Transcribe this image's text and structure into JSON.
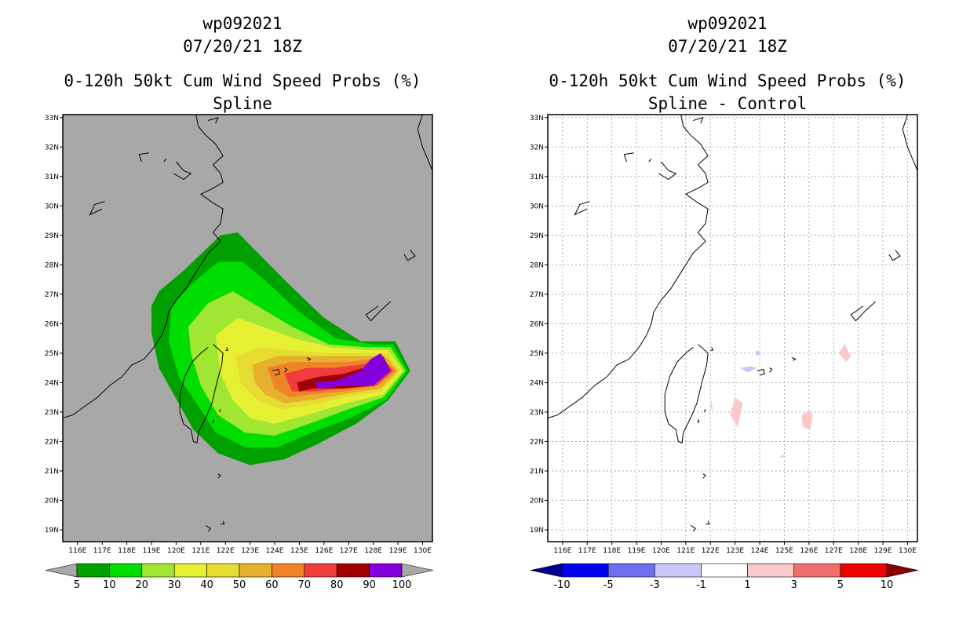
{
  "left_panel": {
    "title_storm": "wp092021",
    "title_time": "07/20/21 18Z",
    "title_product": "0-120h 50kt Cum Wind Speed Probs (%)",
    "title_model": "Spline",
    "colorbar": {
      "labels": [
        "5",
        "10",
        "20",
        "30",
        "40",
        "50",
        "60",
        "70",
        "80",
        "90",
        "100"
      ],
      "colors": [
        "#a8a8a8",
        "#00a000",
        "#00dd00",
        "#a0e632",
        "#e6f032",
        "#e6dc32",
        "#e6af2d",
        "#f08228",
        "#f03c3c",
        "#a00000",
        "#8200dc",
        "#a8a8a8"
      ]
    },
    "background_color": "#a8a8a8"
  },
  "right_panel": {
    "title_storm": "wp092021",
    "title_time": "07/20/21 18Z",
    "title_product": "0-120h 50kt Cum Wind Speed Probs (%)",
    "title_model": "Spline - Control",
    "colorbar": {
      "labels": [
        "-10",
        "-5",
        "-3",
        "-1",
        "1",
        "3",
        "5",
        "10"
      ],
      "colors": [
        "#00008c",
        "#0000f0",
        "#6e6ef0",
        "#c8c8fa",
        "#ffffff",
        "#fac8c8",
        "#f06e6e",
        "#f00000",
        "#8c0000"
      ]
    },
    "background_color": "#ffffff"
  },
  "axes": {
    "lat_labels": [
      "33N",
      "32N",
      "31N",
      "30N",
      "29N",
      "28N",
      "27N",
      "26N",
      "25N",
      "24N",
      "23N",
      "22N",
      "21N",
      "20N",
      "19N"
    ],
    "lon_labels": [
      "116E",
      "117E",
      "118E",
      "119E",
      "120E",
      "121E",
      "122E",
      "123E",
      "124E",
      "125E",
      "126E",
      "127E",
      "128E",
      "129E",
      "130E"
    ],
    "lat_values": [
      33,
      32,
      31,
      30,
      29,
      28,
      27,
      26,
      25,
      24,
      23,
      22,
      21,
      20,
      19
    ],
    "lon_values": [
      116,
      117,
      118,
      119,
      120,
      121,
      122,
      123,
      124,
      125,
      126,
      127,
      128,
      129,
      130
    ],
    "lat_range": [
      18.6,
      33.1
    ],
    "lon_range": [
      115.4,
      130.4
    ]
  },
  "probability_contours": {
    "levels": [
      5,
      10,
      20,
      30,
      40,
      50,
      60,
      70,
      80,
      90
    ],
    "colors": [
      "#00a000",
      "#00dd00",
      "#a0e632",
      "#e6f032",
      "#e6dc32",
      "#e6af2d",
      "#f08228",
      "#f03c3c",
      "#a00000",
      "#8200dc"
    ],
    "polygons_lonlat": [
      [
        [
          119.3,
          27.1
        ],
        [
          120.3,
          27.8
        ],
        [
          121.8,
          29.0
        ],
        [
          122.5,
          29.1
        ],
        [
          123.2,
          28.5
        ],
        [
          124.5,
          27.4
        ],
        [
          126.0,
          26.2
        ],
        [
          127.5,
          25.4
        ],
        [
          128.9,
          25.4
        ],
        [
          129.5,
          24.4
        ],
        [
          128.6,
          23.4
        ],
        [
          127.3,
          22.6
        ],
        [
          125.7,
          21.9
        ],
        [
          124.4,
          21.4
        ],
        [
          123.0,
          21.2
        ],
        [
          121.7,
          21.6
        ],
        [
          120.7,
          22.4
        ],
        [
          119.9,
          23.6
        ],
        [
          119.3,
          24.5
        ],
        [
          119.0,
          25.7
        ],
        [
          119.0,
          26.6
        ]
      ],
      [
        [
          119.8,
          26.6
        ],
        [
          120.7,
          27.4
        ],
        [
          121.7,
          28.1
        ],
        [
          122.7,
          28.1
        ],
        [
          123.7,
          27.4
        ],
        [
          125.0,
          26.4
        ],
        [
          126.5,
          25.5
        ],
        [
          128.0,
          25.3
        ],
        [
          128.8,
          25.3
        ],
        [
          129.4,
          24.4
        ],
        [
          128.5,
          23.4
        ],
        [
          127.1,
          22.8
        ],
        [
          125.5,
          22.3
        ],
        [
          124.1,
          21.8
        ],
        [
          122.8,
          21.8
        ],
        [
          121.6,
          22.3
        ],
        [
          120.9,
          23.2
        ],
        [
          120.1,
          24.2
        ],
        [
          119.7,
          25.4
        ]
      ],
      [
        [
          120.5,
          25.9
        ],
        [
          121.3,
          26.7
        ],
        [
          122.3,
          27.1
        ],
        [
          123.3,
          26.6
        ],
        [
          124.7,
          25.9
        ],
        [
          126.2,
          25.3
        ],
        [
          127.8,
          25.2
        ],
        [
          128.7,
          25.2
        ],
        [
          129.3,
          24.4
        ],
        [
          128.4,
          23.5
        ],
        [
          127.0,
          23.1
        ],
        [
          125.4,
          22.6
        ],
        [
          124.0,
          22.2
        ],
        [
          122.8,
          22.3
        ],
        [
          121.7,
          22.9
        ],
        [
          121.0,
          23.9
        ],
        [
          120.6,
          25.0
        ]
      ],
      [
        [
          121.6,
          25.6
        ],
        [
          122.5,
          26.2
        ],
        [
          123.5,
          25.9
        ],
        [
          124.8,
          25.5
        ],
        [
          126.3,
          25.2
        ],
        [
          127.9,
          25.1
        ],
        [
          128.6,
          25.1
        ],
        [
          129.2,
          24.4
        ],
        [
          128.4,
          23.6
        ],
        [
          126.9,
          23.3
        ],
        [
          125.3,
          22.9
        ],
        [
          124.0,
          22.6
        ],
        [
          123.0,
          22.8
        ],
        [
          122.3,
          23.4
        ],
        [
          121.8,
          24.3
        ]
      ],
      [
        [
          122.4,
          24.9
        ],
        [
          123.4,
          25.2
        ],
        [
          124.7,
          25.1
        ],
        [
          126.2,
          25.0
        ],
        [
          127.8,
          25.0
        ],
        [
          128.6,
          25.0
        ],
        [
          129.1,
          24.4
        ],
        [
          128.3,
          23.7
        ],
        [
          126.8,
          23.5
        ],
        [
          125.3,
          23.2
        ],
        [
          124.2,
          23.1
        ],
        [
          123.3,
          23.4
        ],
        [
          122.6,
          24.0
        ]
      ],
      [
        [
          123.1,
          24.6
        ],
        [
          124.1,
          24.9
        ],
        [
          125.4,
          24.9
        ],
        [
          126.7,
          24.9
        ],
        [
          128.0,
          24.9
        ],
        [
          128.5,
          24.9
        ],
        [
          129.0,
          24.4
        ],
        [
          128.3,
          23.8
        ],
        [
          126.8,
          23.6
        ],
        [
          125.4,
          23.4
        ],
        [
          124.4,
          23.3
        ],
        [
          123.6,
          23.6
        ],
        [
          123.2,
          24.0
        ]
      ],
      [
        [
          123.7,
          24.5
        ],
        [
          124.7,
          24.7
        ],
        [
          125.8,
          24.7
        ],
        [
          127.0,
          24.7
        ],
        [
          128.0,
          24.8
        ],
        [
          128.4,
          24.8
        ],
        [
          128.9,
          24.4
        ],
        [
          128.2,
          23.9
        ],
        [
          126.8,
          23.7
        ],
        [
          125.5,
          23.6
        ],
        [
          124.6,
          23.5
        ],
        [
          124.0,
          23.8
        ]
      ],
      [
        [
          124.4,
          24.3
        ],
        [
          125.3,
          24.5
        ],
        [
          126.4,
          24.5
        ],
        [
          127.4,
          24.6
        ],
        [
          128.1,
          24.7
        ],
        [
          128.4,
          24.8
        ],
        [
          128.8,
          24.4
        ],
        [
          128.1,
          23.9
        ],
        [
          126.8,
          23.8
        ],
        [
          125.6,
          23.7
        ],
        [
          124.7,
          23.7
        ]
      ],
      [
        [
          124.9,
          24.0
        ],
        [
          125.8,
          24.2
        ],
        [
          126.8,
          24.3
        ],
        [
          127.6,
          24.5
        ],
        [
          128.2,
          24.8
        ],
        [
          128.4,
          24.9
        ],
        [
          128.7,
          24.4
        ],
        [
          128.0,
          23.9
        ],
        [
          126.8,
          23.8
        ],
        [
          125.6,
          23.8
        ],
        [
          125.0,
          23.7
        ]
      ],
      [
        [
          125.6,
          24.0
        ],
        [
          126.6,
          24.1
        ],
        [
          127.5,
          24.4
        ],
        [
          127.9,
          24.8
        ],
        [
          128.3,
          25.0
        ],
        [
          128.7,
          24.4
        ],
        [
          128.0,
          23.9
        ],
        [
          126.8,
          23.9
        ],
        [
          125.8,
          23.8
        ]
      ]
    ]
  },
  "difference_patches": {
    "colors": [
      "#c8c8fa",
      "#fac8c8"
    ],
    "polygons_lonlat": [
      [
        [
          123.6,
          24.55
        ],
        [
          123.9,
          24.5
        ],
        [
          123.5,
          24.35
        ],
        [
          123.2,
          24.5
        ]
      ],
      [
        [
          123.9,
          25.1
        ],
        [
          124.05,
          25.0
        ],
        [
          123.9,
          24.9
        ],
        [
          123.8,
          25.0
        ]
      ],
      [
        [
          122.05,
          23.4
        ],
        [
          122.1,
          23.0
        ],
        [
          122.0,
          23.2
        ]
      ],
      [
        [
          123.0,
          23.5
        ],
        [
          123.3,
          23.3
        ],
        [
          123.1,
          22.5
        ],
        [
          122.8,
          22.9
        ]
      ],
      [
        [
          126.0,
          23.05
        ],
        [
          126.15,
          22.9
        ],
        [
          126.05,
          22.4
        ],
        [
          125.75,
          22.5
        ],
        [
          125.7,
          22.9
        ]
      ],
      [
        [
          127.45,
          25.3
        ],
        [
          127.7,
          24.9
        ],
        [
          127.5,
          24.7
        ],
        [
          127.2,
          25.0
        ]
      ],
      [
        [
          124.9,
          21.55
        ],
        [
          125.1,
          21.5
        ],
        [
          124.8,
          21.45
        ]
      ]
    ],
    "polygon_color_index": [
      0,
      0,
      1,
      1,
      1,
      1,
      1
    ]
  },
  "coastlines_lonlat": [
    [
      [
        121.5,
        25.3
      ],
      [
        121.9,
        25.0
      ],
      [
        121.85,
        24.6
      ],
      [
        121.65,
        24.0
      ],
      [
        121.45,
        23.3
      ],
      [
        121.2,
        22.8
      ],
      [
        120.9,
        22.3
      ],
      [
        120.85,
        21.95
      ],
      [
        120.7,
        22.0
      ],
      [
        120.6,
        22.4
      ],
      [
        120.3,
        22.6
      ],
      [
        120.15,
        23.0
      ],
      [
        120.15,
        23.6
      ],
      [
        120.35,
        24.2
      ],
      [
        120.65,
        24.7
      ],
      [
        121.0,
        25.0
      ],
      [
        121.3,
        25.2
      ]
    ],
    [
      [
        121.2,
        32.4
      ],
      [
        121.6,
        32.1
      ],
      [
        121.9,
        31.7
      ],
      [
        121.5,
        31.4
      ],
      [
        121.8,
        31.1
      ],
      [
        121.9,
        30.8
      ],
      [
        121.5,
        30.6
      ],
      [
        121.0,
        30.4
      ],
      [
        121.5,
        30.1
      ],
      [
        121.9,
        29.9
      ],
      [
        121.8,
        29.4
      ],
      [
        121.5,
        29.1
      ],
      [
        121.8,
        28.8
      ],
      [
        121.3,
        28.4
      ],
      [
        121.0,
        28.0
      ],
      [
        120.7,
        27.6
      ],
      [
        120.4,
        27.2
      ],
      [
        120.0,
        26.8
      ],
      [
        119.7,
        26.4
      ],
      [
        119.6,
        26.0
      ],
      [
        119.4,
        25.6
      ],
      [
        119.1,
        25.2
      ],
      [
        118.7,
        24.8
      ],
      [
        118.2,
        24.6
      ],
      [
        117.8,
        24.2
      ],
      [
        117.3,
        23.9
      ],
      [
        116.8,
        23.5
      ],
      [
        116.3,
        23.2
      ],
      [
        115.8,
        22.9
      ],
      [
        115.4,
        22.8
      ]
    ],
    [
      [
        121.2,
        32.4
      ],
      [
        120.9,
        32.7
      ],
      [
        120.8,
        33.1
      ]
    ],
    [
      [
        128.7,
        26.75
      ],
      [
        128.3,
        26.45
      ],
      [
        127.9,
        26.1
      ],
      [
        127.7,
        26.3
      ],
      [
        128.2,
        26.6
      ]
    ],
    [
      [
        129.5,
        28.5
      ],
      [
        129.7,
        28.3
      ],
      [
        129.4,
        28.15
      ],
      [
        129.25,
        28.35
      ]
    ],
    [
      [
        123.9,
        24.4
      ],
      [
        124.15,
        24.45
      ],
      [
        124.2,
        24.3
      ],
      [
        124.0,
        24.25
      ]
    ],
    [
      [
        124.4,
        24.5
      ],
      [
        124.5,
        24.45
      ],
      [
        124.4,
        24.35
      ]
    ],
    [
      [
        125.3,
        24.85
      ],
      [
        125.45,
        24.8
      ],
      [
        125.35,
        24.75
      ]
    ],
    [
      [
        121.55,
        22.7
      ],
      [
        121.5,
        22.65
      ],
      [
        121.52,
        22.75
      ]
    ],
    [
      [
        121.7,
        20.9
      ],
      [
        121.8,
        20.85
      ],
      [
        121.7,
        20.75
      ]
    ],
    [
      [
        121.9,
        19.3
      ],
      [
        121.95,
        19.2
      ],
      [
        121.8,
        19.2
      ]
    ],
    [
      [
        121.2,
        19.15
      ],
      [
        121.4,
        19.05
      ],
      [
        121.3,
        18.95
      ]
    ],
    [
      [
        117.1,
        30.15
      ],
      [
        116.7,
        30.05
      ],
      [
        116.5,
        29.7
      ],
      [
        117.0,
        29.9
      ]
    ],
    [
      [
        120.0,
        31.5
      ],
      [
        120.3,
        31.2
      ],
      [
        120.6,
        31.1
      ],
      [
        120.3,
        30.9
      ],
      [
        119.9,
        31.1
      ]
    ],
    [
      [
        118.9,
        31.8
      ],
      [
        118.5,
        31.75
      ],
      [
        118.6,
        31.5
      ]
    ],
    [
      [
        119.6,
        31.6
      ],
      [
        119.5,
        31.5
      ]
    ],
    [
      [
        121.3,
        32.9
      ],
      [
        121.7,
        33.0
      ],
      [
        121.6,
        32.8
      ]
    ],
    [
      [
        130.0,
        33.1
      ],
      [
        129.8,
        32.6
      ],
      [
        130.0,
        32.0
      ],
      [
        130.3,
        31.4
      ],
      [
        130.4,
        31.2
      ]
    ],
    [
      [
        122.05,
        25.2
      ],
      [
        122.1,
        25.1
      ],
      [
        122.0,
        25.1
      ]
    ],
    [
      [
        121.8,
        23.1
      ],
      [
        121.75,
        23.0
      ]
    ]
  ]
}
